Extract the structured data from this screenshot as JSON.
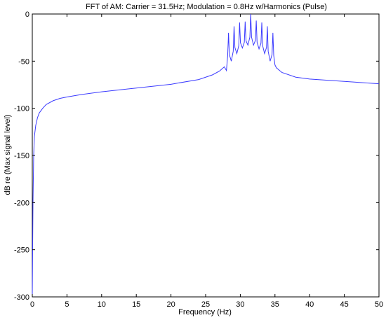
{
  "chart_data": {
    "type": "line",
    "title": "FFT of AM: Carrier = 31.5Hz; Modulation = 0.8Hz w/Harmonics (Pulse)",
    "xlabel": "Frequency (Hz)",
    "ylabel": "dB re (Max signal level)",
    "xlim": [
      0,
      50
    ],
    "ylim": [
      -300,
      0
    ],
    "x_ticks": [
      0,
      5,
      10,
      15,
      20,
      25,
      30,
      35,
      40,
      45,
      50
    ],
    "y_ticks": [
      0,
      -50,
      -100,
      -150,
      -200,
      -250,
      -300
    ],
    "grid": false,
    "series_color": "#3a3aff",
    "series": [
      {
        "baseline_x": [
          0,
          0.05,
          0.1,
          0.2,
          0.3,
          0.5,
          0.75,
          1,
          1.5,
          2,
          3,
          4,
          5,
          7,
          10,
          15,
          20,
          24,
          26,
          27,
          27.7,
          35.2,
          36,
          38,
          40,
          45,
          50
        ],
        "baseline_y": [
          -300,
          -250,
          -200,
          -150,
          -130,
          -118,
          -110,
          -105,
          -100,
          -96,
          -92,
          -89.5,
          -88,
          -85.5,
          -82.5,
          -78.5,
          -74.5,
          -69.5,
          -64.5,
          -60.5,
          -56,
          -57,
          -62,
          -67,
          -69,
          -71.5,
          -74
        ],
        "peaks_x": [
          28.3,
          29.1,
          29.9,
          30.7,
          31.5,
          32.3,
          33.1,
          33.9,
          34.7
        ],
        "peaks_y": [
          -20,
          -13,
          -9,
          -8,
          0,
          -7,
          -9,
          -13,
          -20
        ],
        "valley_y": [
          -50,
          -42,
          -36,
          -33,
          -33,
          -37,
          -42,
          -50
        ]
      }
    ]
  }
}
